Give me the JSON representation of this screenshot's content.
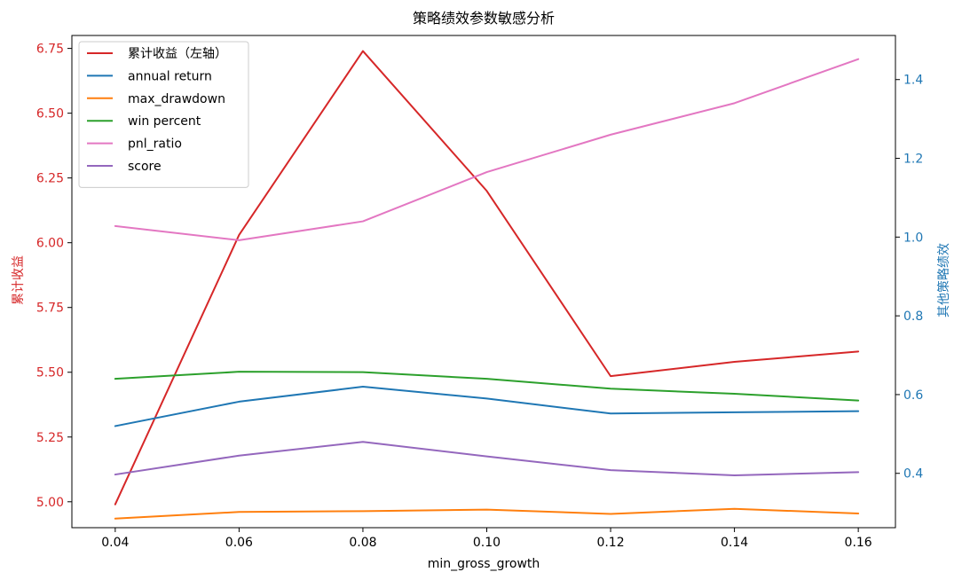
{
  "chart_data": {
    "type": "line",
    "title": "策略绩效参数敏感分析",
    "xlabel": "min_gross_growth",
    "ylabel_left": "累计收益",
    "ylabel_right": "其他策略绩效",
    "x": [
      0.04,
      0.06,
      0.08,
      0.1,
      0.12,
      0.14,
      0.16
    ],
    "x_ticks": [
      "0.04",
      "0.06",
      "0.08",
      "0.10",
      "0.12",
      "0.14",
      "0.16"
    ],
    "xlim": [
      0.033,
      0.166
    ],
    "ylim_left": [
      4.9,
      6.8
    ],
    "ylim_right": [
      0.262,
      1.512
    ],
    "left_ticks": [
      "5.00",
      "5.25",
      "5.50",
      "5.75",
      "6.00",
      "6.25",
      "6.50",
      "6.75"
    ],
    "left_tick_values": [
      5.0,
      5.25,
      5.5,
      5.75,
      6.0,
      6.25,
      6.5,
      6.75
    ],
    "right_ticks": [
      "0.4",
      "0.6",
      "0.8",
      "1.0",
      "1.2",
      "1.4"
    ],
    "right_tick_values": [
      0.4,
      0.6,
      0.8,
      1.0,
      1.2,
      1.4
    ],
    "left_axis_color": "#d62728",
    "right_axis_color": "#1f77b4",
    "grid": false,
    "legend_position": "top-left",
    "series": [
      {
        "name": "累计收益（左轴）",
        "axis": "left",
        "color": "#d62728",
        "values": [
          4.99,
          6.03,
          6.74,
          6.2,
          5.485,
          5.54,
          5.58
        ]
      },
      {
        "name": "annual return",
        "axis": "right",
        "color": "#1f77b4",
        "values": [
          0.52,
          0.582,
          0.62,
          0.59,
          0.552,
          0.555,
          0.558
        ]
      },
      {
        "name": "max_drawdown",
        "axis": "right",
        "color": "#ff7f0e",
        "values": [
          0.285,
          0.302,
          0.304,
          0.308,
          0.297,
          0.31,
          0.298
        ]
      },
      {
        "name": "win percent",
        "axis": "right",
        "color": "#2ca02c",
        "values": [
          0.64,
          0.658,
          0.657,
          0.64,
          0.615,
          0.602,
          0.585
        ]
      },
      {
        "name": "pnl_ratio",
        "axis": "right",
        "color": "#e377c2",
        "values": [
          1.028,
          0.992,
          1.04,
          1.165,
          1.26,
          1.34,
          1.452
        ]
      },
      {
        "name": "score",
        "axis": "right",
        "color": "#9467bd",
        "values": [
          0.397,
          0.445,
          0.48,
          0.443,
          0.408,
          0.395,
          0.403
        ]
      }
    ]
  }
}
